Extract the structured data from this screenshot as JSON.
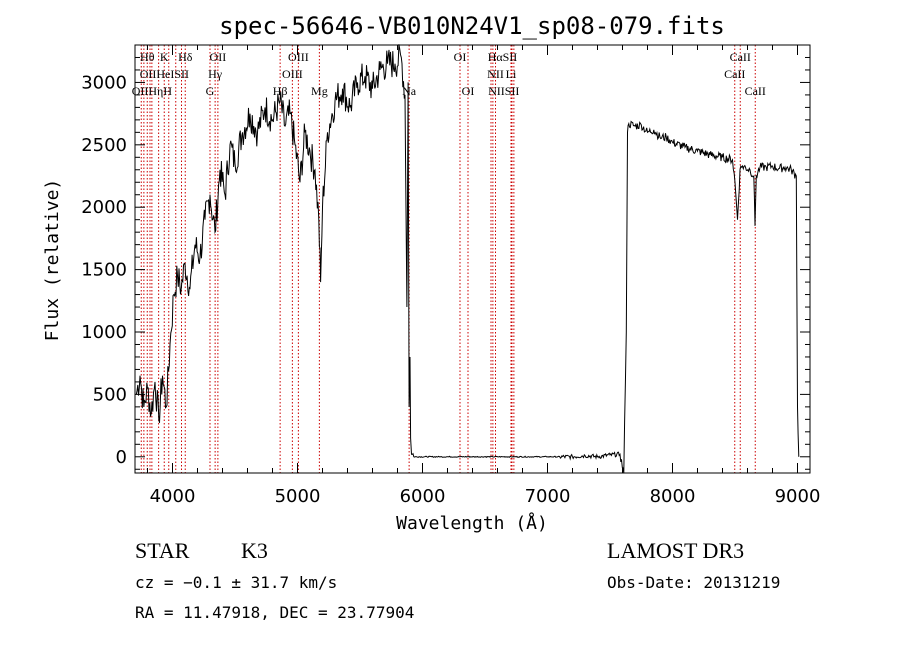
{
  "chart_data": {
    "type": "line",
    "title": "spec-56646-VB010N24V1_sp08-079.fits",
    "xlabel": "Wavelength (Å)",
    "ylabel": "Flux (relative)",
    "xlim": [
      3700,
      9100
    ],
    "ylim": [
      -130,
      3300
    ],
    "xticks": [
      4000,
      5000,
      6000,
      7000,
      8000,
      9000
    ],
    "yticks": [
      0,
      500,
      1000,
      1500,
      2000,
      2500,
      3000
    ],
    "grid": false,
    "color": "#000000",
    "line_color": "#cc0000",
    "series": [
      {
        "name": "spectrum",
        "x": [
          3710,
          3740,
          3770,
          3800,
          3830,
          3860,
          3890,
          3920,
          3950,
          3980,
          4010,
          4040,
          4070,
          4100,
          4140,
          4180,
          4220,
          4260,
          4300,
          4340,
          4380,
          4420,
          4460,
          4500,
          4560,
          4620,
          4680,
          4740,
          4800,
          4860,
          4900,
          4940,
          4980,
          5020,
          5060,
          5100,
          5140,
          5170,
          5185,
          5200,
          5240,
          5300,
          5360,
          5420,
          5480,
          5540,
          5600,
          5660,
          5720,
          5780,
          5830,
          5860,
          5875,
          5885,
          5893,
          5900,
          5905,
          5912,
          5930,
          6200,
          6600,
          7000,
          7200,
          7300,
          7400,
          7500,
          7580,
          7610,
          7630,
          7640,
          7650,
          7700,
          7750,
          7800,
          7850,
          7900,
          7950,
          8000,
          8100,
          8200,
          8300,
          8400,
          8480,
          8500,
          8520,
          8540,
          8560,
          8620,
          8650,
          8660,
          8670,
          8700,
          8750,
          8800,
          8850,
          8900,
          8950,
          8990,
          9000,
          9010
        ],
        "values": [
          500,
          650,
          400,
          550,
          350,
          600,
          300,
          650,
          400,
          900,
          1300,
          1450,
          1350,
          1550,
          1350,
          1700,
          1600,
          1900,
          2100,
          1800,
          2300,
          2100,
          2500,
          2350,
          2600,
          2750,
          2600,
          2800,
          2700,
          2850,
          2650,
          2750,
          2500,
          2200,
          2600,
          2450,
          2300,
          1900,
          1400,
          2000,
          2600,
          2850,
          2950,
          2800,
          3000,
          3050,
          2950,
          3100,
          3150,
          3150,
          3200,
          2900,
          1200,
          3000,
          400,
          800,
          150,
          20,
          0,
          0,
          0,
          0,
          0,
          10,
          0,
          15,
          20,
          -130,
          1000,
          2600,
          2670,
          2650,
          2660,
          2600,
          2620,
          2560,
          2560,
          2520,
          2480,
          2450,
          2420,
          2400,
          2380,
          2200,
          1900,
          2300,
          2330,
          2300,
          2250,
          1850,
          2250,
          2320,
          2320,
          2330,
          2310,
          2320,
          2300,
          2250,
          400,
          0
        ]
      }
    ],
    "lines": [
      {
        "x": 3750
      },
      {
        "x": 3771
      },
      {
        "x": 3798
      },
      {
        "x": 3820
      },
      {
        "x": 3835
      },
      {
        "x": 3889
      },
      {
        "x": 3934
      },
      {
        "x": 3970
      },
      {
        "x": 4026
      },
      {
        "x": 4072
      },
      {
        "x": 4102
      },
      {
        "x": 4300
      },
      {
        "x": 4341
      },
      {
        "x": 4363
      },
      {
        "x": 4861
      },
      {
        "x": 4959
      },
      {
        "x": 5007
      },
      {
        "x": 5175
      },
      {
        "x": 5893
      },
      {
        "x": 6300
      },
      {
        "x": 6364
      },
      {
        "x": 6548
      },
      {
        "x": 6563
      },
      {
        "x": 6584
      },
      {
        "x": 6708
      },
      {
        "x": 6716
      },
      {
        "x": 6731
      },
      {
        "x": 8498
      },
      {
        "x": 8542
      },
      {
        "x": 8662
      }
    ],
    "annotations": [
      {
        "text": "Hθ",
        "x": 3798,
        "row": 1
      },
      {
        "text": "K",
        "x": 3934,
        "row": 1
      },
      {
        "text": "Hδ",
        "x": 4102,
        "row": 1
      },
      {
        "text": "OII",
        "x": 4363,
        "row": 1
      },
      {
        "text": "OIII",
        "x": 5007,
        "row": 1
      },
      {
        "text": "OI",
        "x": 6300,
        "row": 1
      },
      {
        "text": "HαSII",
        "x": 6640,
        "row": 1
      },
      {
        "text": "CaII",
        "x": 8542,
        "row": 1
      },
      {
        "text": "OIIHeISII",
        "x": 3935,
        "row": 2
      },
      {
        "text": "Hγ",
        "x": 4341,
        "row": 2
      },
      {
        "text": "OIII",
        "x": 4959,
        "row": 2
      },
      {
        "text": "NII",
        "x": 6584,
        "row": 2
      },
      {
        "text": "Li",
        "x": 6708,
        "row": 2
      },
      {
        "text": "CaII",
        "x": 8498,
        "row": 2
      },
      {
        "text": "OIIHηH",
        "x": 3835,
        "row": 3
      },
      {
        "text": "G",
        "x": 4300,
        "row": 3
      },
      {
        "text": "Hβ",
        "x": 4861,
        "row": 3
      },
      {
        "text": "Mg",
        "x": 5175,
        "row": 3
      },
      {
        "text": "Na",
        "x": 5893,
        "row": 3
      },
      {
        "text": "OI",
        "x": 6364,
        "row": 3
      },
      {
        "text": "NIISII",
        "x": 6650,
        "row": 3
      },
      {
        "text": "CaII",
        "x": 8662,
        "row": 3
      }
    ]
  },
  "info": {
    "object_class": "STAR",
    "subclass": "K3",
    "survey": "LAMOST DR3",
    "cz": "cz = −0.1 ± 31.7 km/s",
    "obs_date": "Obs-Date: 20131219",
    "coords": "RA =  11.47918, DEC =  23.77904"
  }
}
